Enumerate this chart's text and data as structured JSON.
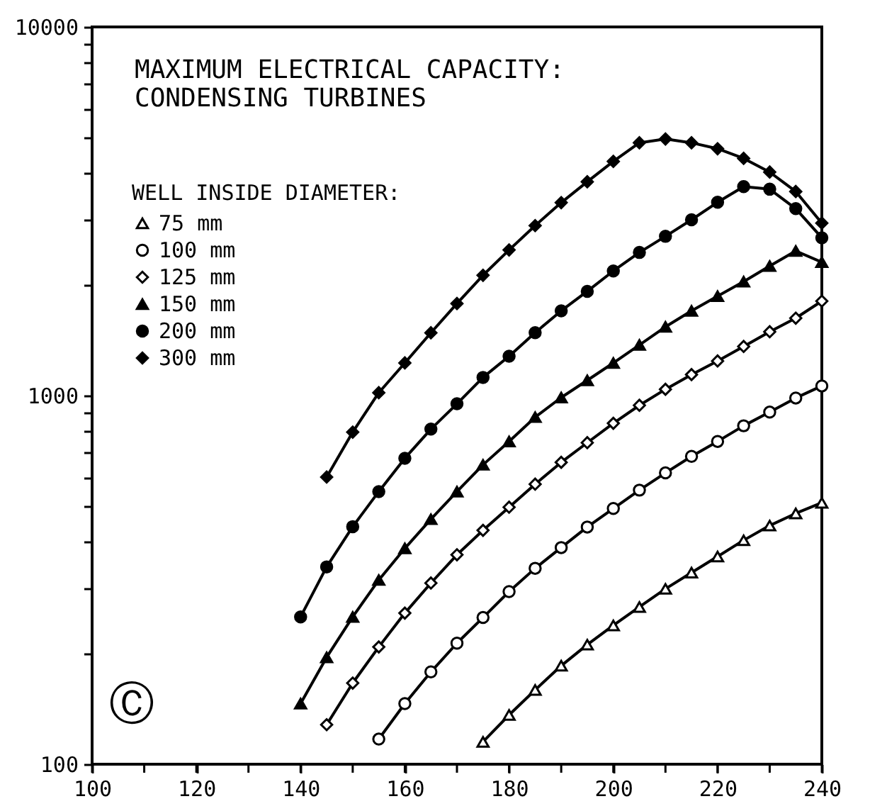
{
  "chart_data": {
    "type": "line",
    "title": "MAXIMUM ELECTRICAL CAPACITY:\nCONDENSING TURBINES",
    "legend_title": "WELL INSIDE DIAMETER:",
    "annotations": [
      "Ⓒ"
    ],
    "x": [
      140,
      145,
      150,
      155,
      160,
      165,
      170,
      175,
      180,
      185,
      190,
      195,
      200,
      205,
      210,
      215,
      220,
      225,
      230,
      235,
      240
    ],
    "series": [
      {
        "name": "75 mm",
        "color": "#000000",
        "marker": "triangle-open",
        "values": [
          null,
          null,
          null,
          null,
          null,
          null,
          null,
          115,
          136,
          159,
          185,
          211,
          238,
          267,
          299,
          331,
          366,
          405,
          444,
          479,
          512
        ]
      },
      {
        "name": "100 mm",
        "color": "#000000",
        "marker": "circle-open",
        "values": [
          null,
          null,
          null,
          117,
          146,
          178,
          213,
          250,
          294,
          340,
          387,
          440,
          494,
          554,
          617,
          684,
          751,
          828,
          902,
          985,
          1062
        ]
      },
      {
        "name": "125 mm",
        "color": "#000000",
        "marker": "diamond-open",
        "values": [
          null,
          128,
          166,
          208,
          257,
          310,
          370,
          431,
          498,
          575,
          659,
          745,
          841,
          941,
          1040,
          1140,
          1241,
          1359,
          1490,
          1622,
          1804
        ]
      },
      {
        "name": "150 mm",
        "color": "#000000",
        "marker": "triangle",
        "values": [
          146,
          195,
          251,
          316,
          385,
          462,
          549,
          649,
          751,
          874,
          988,
          1100,
          1226,
          1372,
          1536,
          1698,
          1861,
          2037,
          2246,
          2468,
          2301
        ]
      },
      {
        "name": "200 mm",
        "color": "#000000",
        "marker": "circle",
        "values": [
          251,
          343,
          441,
          549,
          676,
          811,
          950,
          1120,
          1279,
          1481,
          1698,
          1918,
          2178,
          2445,
          2704,
          2999,
          3345,
          3689,
          3630,
          3214,
          2679
        ]
      },
      {
        "name": "300 mm",
        "color": "#000000",
        "marker": "diamond",
        "values": [
          null,
          601,
          796,
          1018,
          1226,
          1480,
          1777,
          2120,
          2483,
          2891,
          3337,
          3802,
          4318,
          4850,
          4966,
          4850,
          4673,
          4400,
          4039,
          3577,
          2937
        ]
      }
    ],
    "xlim": [
      100,
      240
    ],
    "xticks": [
      100,
      {
        "value": 110,
        "label": null
      },
      120,
      {
        "value": 130,
        "label": null
      },
      140,
      {
        "value": 150,
        "label": null
      },
      160,
      {
        "value": 170,
        "label": null
      },
      180,
      {
        "value": 190,
        "label": null
      },
      200,
      {
        "value": 210,
        "label": null
      },
      220,
      {
        "value": 230,
        "label": null
      },
      240
    ],
    "ylim": [
      100,
      10000
    ],
    "yticks": [
      100,
      {
        "value": 200,
        "label": null
      },
      {
        "value": 300,
        "label": null
      },
      {
        "value": 400,
        "label": null
      },
      {
        "value": 500,
        "label": null
      },
      {
        "value": 600,
        "label": null
      },
      {
        "value": 700,
        "label": null
      },
      {
        "value": 800,
        "label": null
      },
      {
        "value": 900,
        "label": null
      },
      1000,
      {
        "value": 2000,
        "label": null
      },
      {
        "value": 3000,
        "label": null
      },
      {
        "value": 4000,
        "label": null
      },
      {
        "value": 5000,
        "label": null
      },
      {
        "value": 6000,
        "label": null
      },
      {
        "value": 7000,
        "label": null
      },
      {
        "value": 8000,
        "label": null
      },
      {
        "value": 9000,
        "label": null
      },
      10000
    ],
    "log": true,
    "legend": "top left",
    "line_style": "solid"
  }
}
